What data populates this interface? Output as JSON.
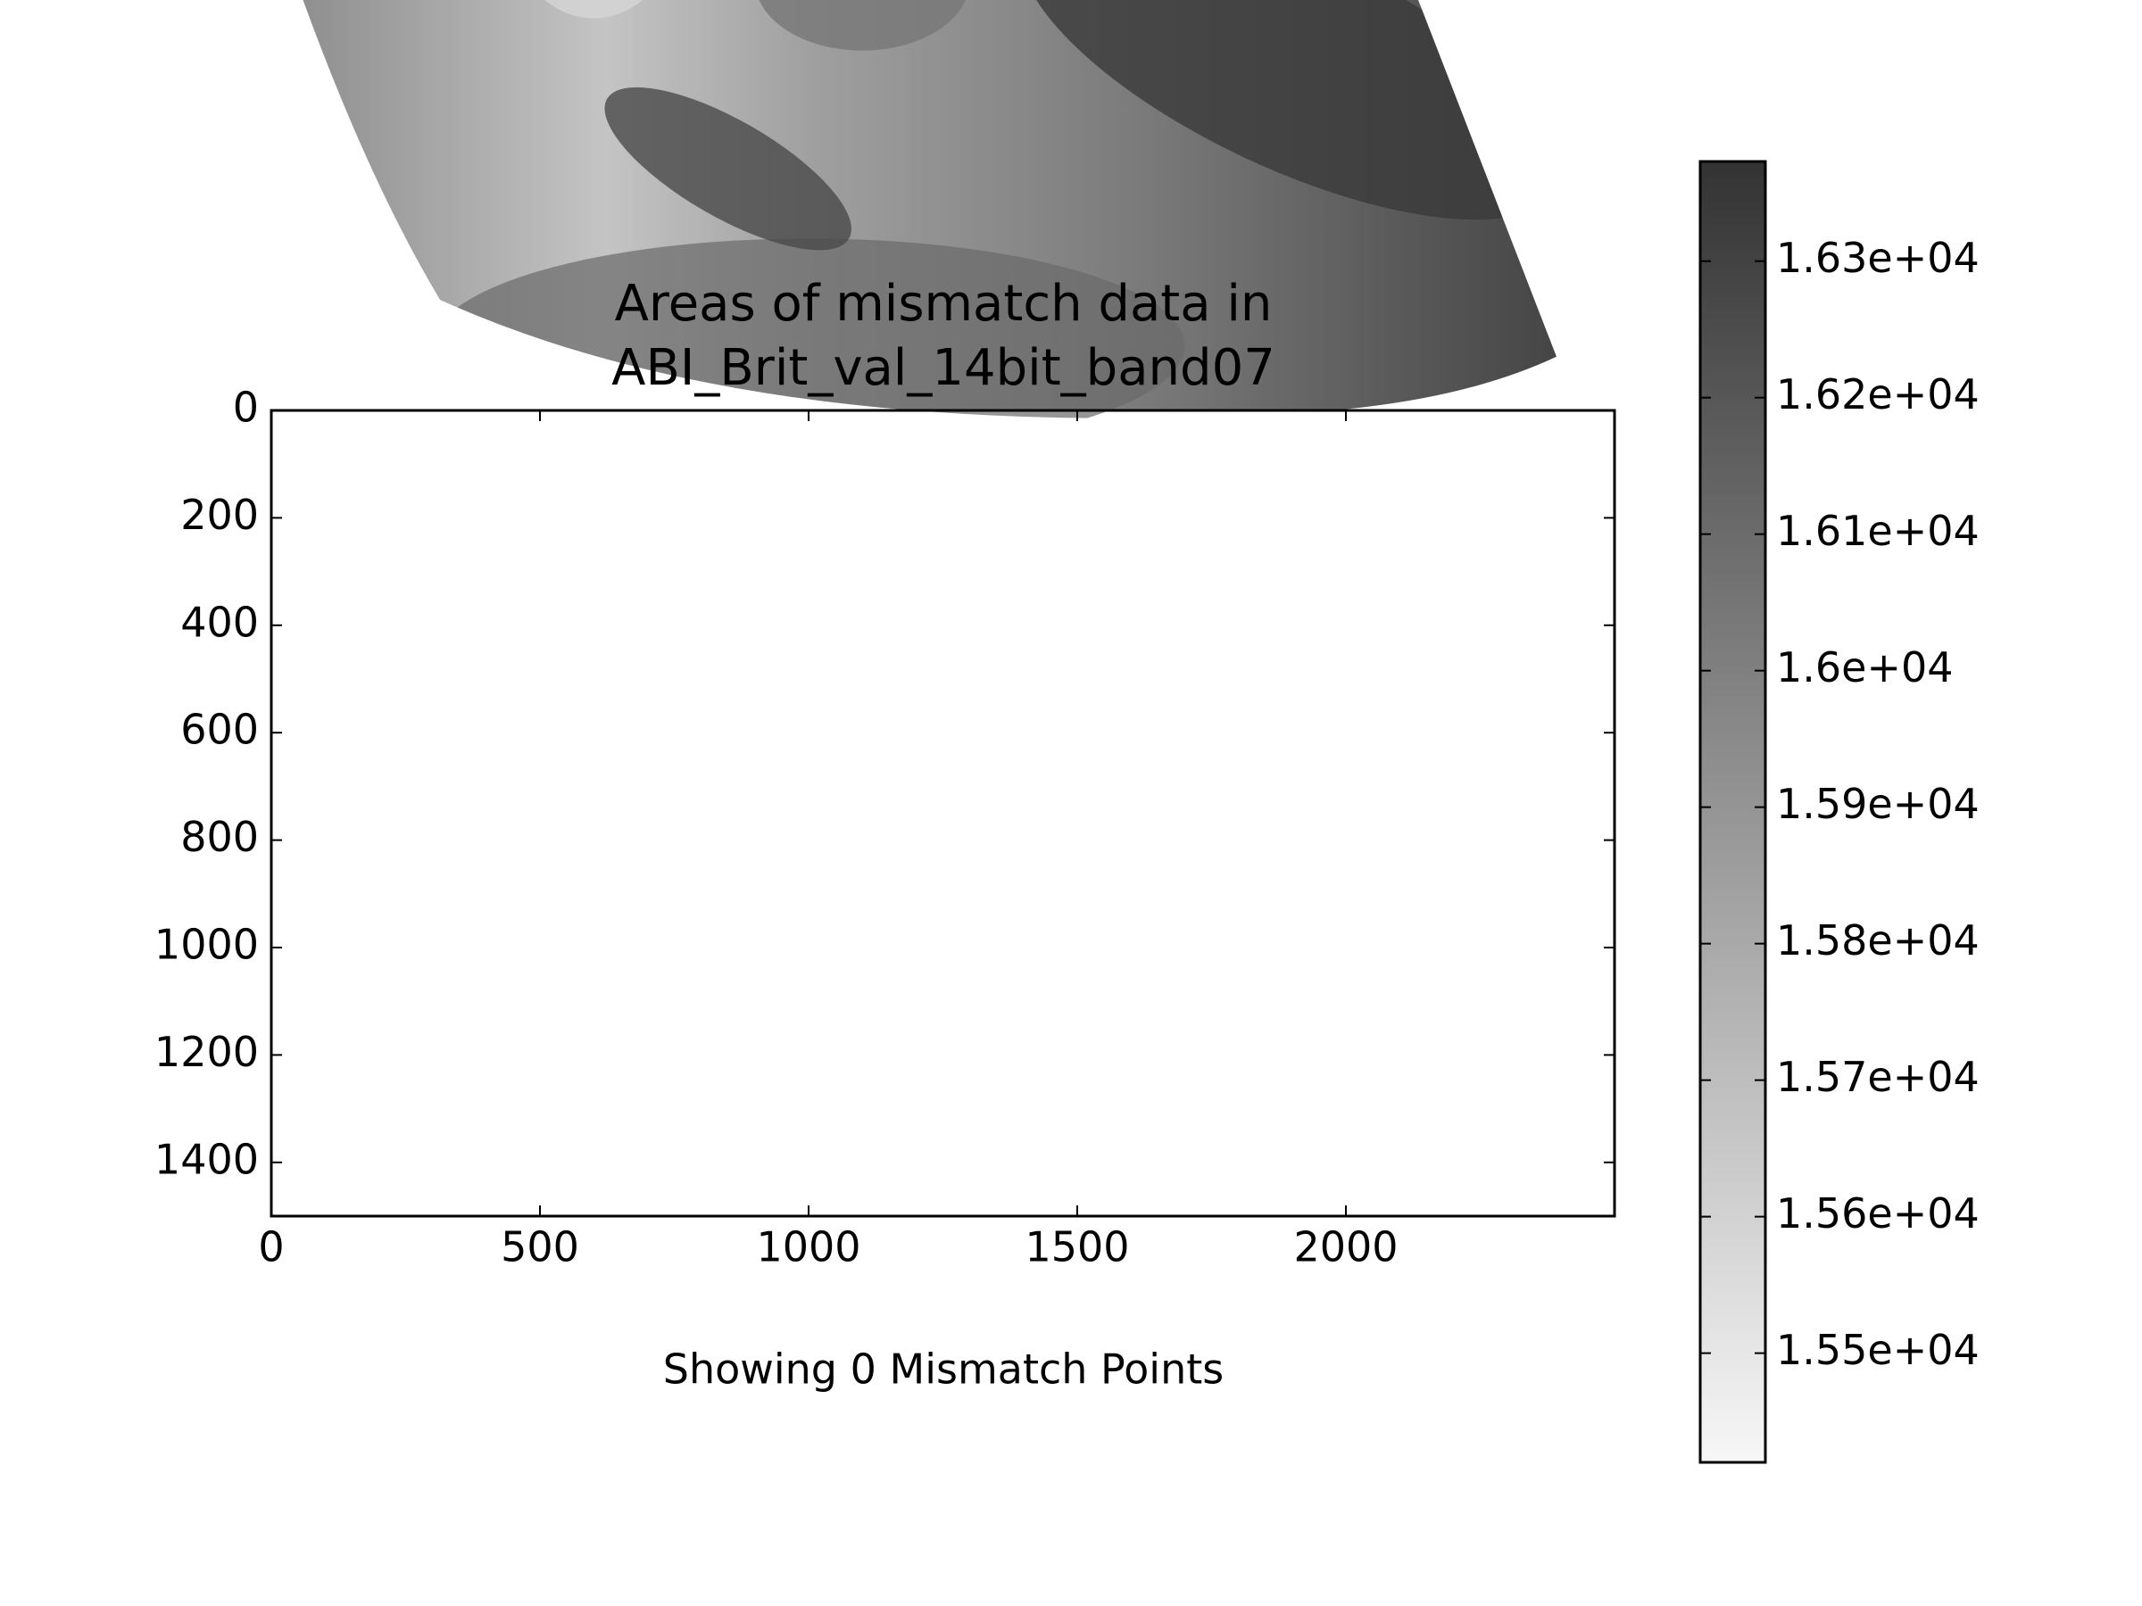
{
  "chart_data": {
    "type": "image",
    "title": [
      "Areas of mismatch data in",
      "ABI_Brit_val_14bit_band07"
    ],
    "xlabel": "Showing 0 Mismatch Points",
    "xlim": [
      0,
      2500
    ],
    "ylim": [
      1500,
      0
    ],
    "xticks": [
      0,
      500,
      1000,
      1500,
      2000
    ],
    "yticks": [
      0,
      200,
      400,
      600,
      800,
      1000,
      1200,
      1400
    ],
    "colormap": [
      "#f7f7f7",
      "#333333"
    ],
    "clim": [
      15420,
      16373
    ],
    "colorbar_ticks": [
      {
        "value": 15500,
        "label": "1.55e+04"
      },
      {
        "value": 15600,
        "label": "1.56e+04"
      },
      {
        "value": 15700,
        "label": "1.57e+04"
      },
      {
        "value": 15800,
        "label": "1.58e+04"
      },
      {
        "value": 15900,
        "label": "1.59e+04"
      },
      {
        "value": 16000,
        "label": "1.6e+04"
      },
      {
        "value": 16100,
        "label": "1.61e+04"
      },
      {
        "value": 16200,
        "label": "1.62e+04"
      },
      {
        "value": 16300,
        "label": "1.63e+04"
      }
    ]
  }
}
